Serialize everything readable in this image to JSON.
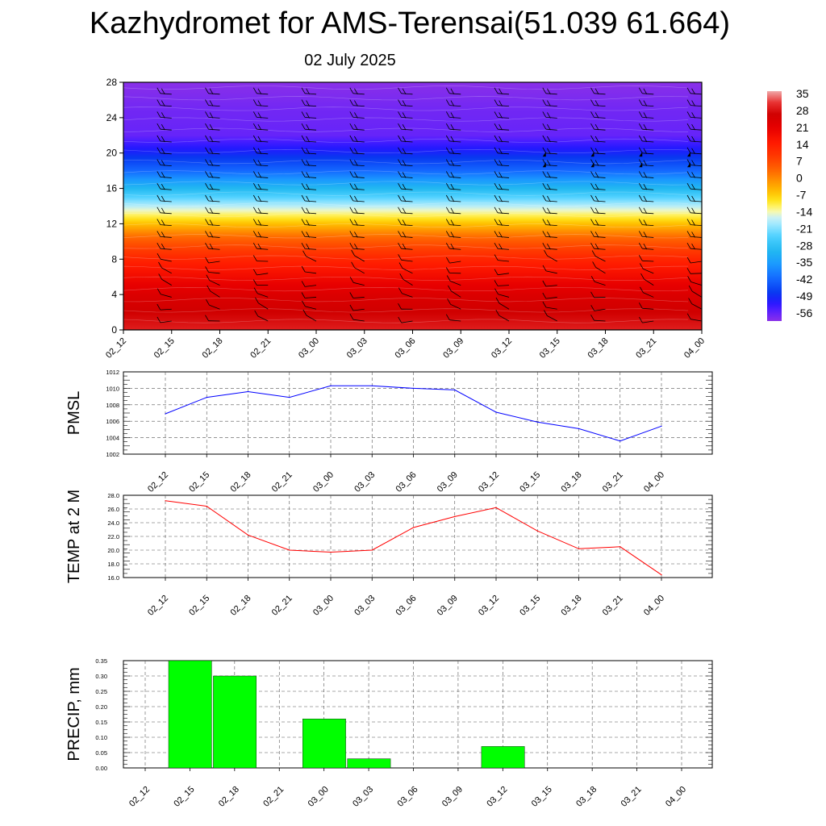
{
  "header": {
    "title": "Kazhydromet for AMS-Terensai(51.039 61.664)",
    "subtitle": "02 July 2025"
  },
  "time_labels": [
    "02_12",
    "02_15",
    "02_18",
    "02_21",
    "03_00",
    "03_03",
    "03_06",
    "03_09",
    "03_12",
    "03_15",
    "03_18",
    "03_21",
    "04_00"
  ],
  "colors": {
    "pmsl_line": "#0000ff",
    "temp_line": "#ff0000",
    "precip_bar": "#00ff00",
    "precip_bar_edge": "#000000"
  },
  "chart_data": [
    {
      "type": "heatmap",
      "name": "height-time cross section",
      "x": [
        "02_12",
        "02_15",
        "02_18",
        "02_21",
        "03_00",
        "03_03",
        "03_06",
        "03_09",
        "03_12",
        "03_15",
        "03_18",
        "03_21",
        "04_00"
      ],
      "y_ticks": [
        0,
        4,
        8,
        12,
        16,
        20,
        24,
        28
      ],
      "ylim": [
        0,
        28
      ],
      "colorbar_labels": [
        "35",
        "28",
        "21",
        "14",
        "7",
        "0",
        "-7",
        "-14",
        "-21",
        "-28",
        "-35",
        "-42",
        "-49",
        "-56"
      ],
      "colorbar_range": [
        -60,
        38
      ],
      "temperature_profile": [
        {
          "z": 0,
          "t": 31
        },
        {
          "z": 4,
          "t": 25
        },
        {
          "z": 8,
          "t": 14
        },
        {
          "z": 10.5,
          "t": 4
        },
        {
          "z": 12.5,
          "t": -8
        },
        {
          "z": 13.5,
          "t": -14
        },
        {
          "z": 16,
          "t": -30
        },
        {
          "z": 18,
          "t": -42
        },
        {
          "z": 20,
          "t": -50
        },
        {
          "z": 22,
          "t": -57
        },
        {
          "z": 25,
          "t": -58
        },
        {
          "z": 28,
          "t": -60
        }
      ],
      "overlay": "wind barbs",
      "grid": false
    },
    {
      "type": "line",
      "ylabel": "PMSL",
      "x": [
        "02_12",
        "02_15",
        "02_18",
        "02_21",
        "03_00",
        "03_03",
        "03_06",
        "03_09",
        "03_12",
        "03_15",
        "03_18",
        "03_21",
        "04_00"
      ],
      "series": [
        {
          "values": [
            1006.9,
            1008.9,
            1009.6,
            1008.9,
            1010.3,
            1010.3,
            1010.0,
            1009.8,
            1007.1,
            1005.9,
            1005.1,
            1003.6,
            1005.4
          ]
        }
      ],
      "ylim": [
        1002,
        1012
      ],
      "y_ticks": [
        "1002",
        "1004",
        "1006",
        "1008",
        "1010",
        "1012"
      ],
      "grid": true
    },
    {
      "type": "line",
      "ylabel": "TEMP at 2 M",
      "x": [
        "02_12",
        "02_15",
        "02_18",
        "02_21",
        "03_00",
        "03_03",
        "03_06",
        "03_09",
        "03_12",
        "03_15",
        "03_18",
        "03_21",
        "04_00"
      ],
      "series": [
        {
          "values": [
            27.2,
            26.4,
            22.2,
            20.0,
            19.7,
            20.0,
            23.3,
            24.9,
            26.2,
            22.8,
            20.2,
            20.5,
            16.4
          ]
        }
      ],
      "ylim": [
        16,
        28
      ],
      "y_ticks": [
        "16.0",
        "18.0",
        "20.0",
        "22.0",
        "24.0",
        "26.0",
        "28.0"
      ],
      "grid": true
    },
    {
      "type": "bar",
      "ylabel": "PRECIP, mm",
      "categories": [
        "02_12",
        "02_15",
        "02_18",
        "02_21",
        "03_00",
        "03_03",
        "03_06",
        "03_09",
        "03_12",
        "03_15",
        "03_18",
        "03_21",
        "04_00"
      ],
      "values": [
        0,
        0.35,
        0.3,
        0,
        0.16,
        0.03,
        0,
        0,
        0.07,
        0,
        0,
        0,
        0
      ],
      "ylim": [
        0,
        0.35
      ],
      "y_ticks": [
        "0.00",
        "0.05",
        "0.10",
        "0.15",
        "0.20",
        "0.25",
        "0.30",
        "0.35"
      ],
      "grid": true
    }
  ]
}
